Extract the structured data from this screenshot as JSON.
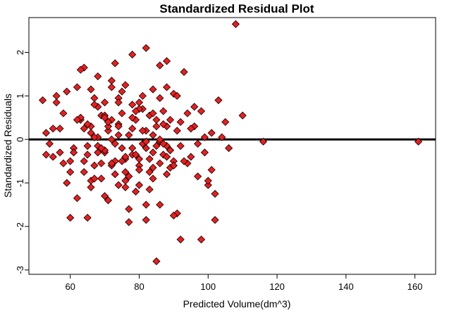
{
  "chart_data": {
    "type": "scatter",
    "title": "Standardized Residual Plot",
    "xlabel": "Predicted Volume(dm^3)",
    "ylabel": "Standardized Residuals",
    "xlim": [
      48,
      166
    ],
    "ylim": [
      -3.1,
      2.8
    ],
    "x_ticks": [
      60,
      80,
      100,
      120,
      140,
      160
    ],
    "y_ticks": [
      -3,
      -2,
      -1,
      0,
      1,
      2
    ],
    "reference_line": 0,
    "grid": false,
    "legend": "none",
    "marker": "diamond",
    "point_color": "#ee1c1c",
    "series": [
      {
        "x": [
          52,
          53,
          54,
          55,
          56,
          57,
          58,
          59,
          60,
          61,
          62,
          63,
          64,
          64,
          65,
          66,
          66,
          67,
          67,
          68,
          68,
          69,
          69,
          70,
          70,
          71,
          71,
          72,
          72,
          73,
          73,
          74,
          74,
          75,
          75,
          76,
          76,
          77,
          77,
          78,
          78,
          79,
          79,
          80,
          80,
          81,
          81,
          82,
          82,
          83,
          83,
          84,
          84,
          85,
          85,
          86,
          86,
          87,
          87,
          88,
          88,
          89,
          89,
          90,
          90,
          91,
          91,
          92,
          93,
          94,
          95,
          96,
          97,
          98,
          99,
          100,
          101,
          102,
          103,
          104,
          105,
          106,
          108,
          110,
          116,
          161,
          53,
          56,
          58,
          60,
          62,
          64,
          66,
          68,
          70,
          72,
          74,
          76,
          78,
          80,
          82,
          84,
          86,
          88,
          90,
          92,
          94,
          96,
          98,
          100,
          102,
          55,
          57,
          59,
          61,
          63,
          65,
          67,
          69,
          71,
          73,
          75,
          77,
          79,
          81,
          83,
          85,
          87,
          89,
          91,
          93,
          95,
          97,
          99,
          101,
          60,
          63,
          65,
          67,
          70,
          72,
          74,
          76,
          78,
          80,
          82,
          84,
          86,
          88,
          90,
          92,
          62,
          64,
          66,
          68,
          70,
          72,
          74,
          76,
          78,
          80,
          82,
          84,
          86,
          88,
          66,
          68,
          70,
          72,
          74,
          76,
          78,
          80,
          82,
          84,
          86,
          88,
          65,
          67,
          69,
          71,
          73,
          75,
          77,
          79,
          81,
          83,
          85,
          87,
          89
        ],
        "y": [
          0.9,
          0.15,
          -0.1,
          0.25,
          1.0,
          -0.3,
          -0.55,
          1.1,
          -0.75,
          -0.2,
          -1.35,
          0.45,
          1.65,
          -0.5,
          -1.8,
          0.3,
          -1.1,
          0.95,
          -0.6,
          1.45,
          0.05,
          0.55,
          -0.9,
          0.85,
          -0.3,
          0.2,
          -1.4,
          1.2,
          0.0,
          1.75,
          -0.5,
          0.35,
          -1.05,
          0.6,
          -0.2,
          1.25,
          -0.75,
          0.1,
          -1.6,
          1.95,
          -0.35,
          0.45,
          -1.2,
          0.85,
          -0.6,
          1.0,
          -0.1,
          2.1,
          -1.85,
          0.55,
          -0.45,
          1.15,
          -0.9,
          0.3,
          -2.8,
          1.7,
          -0.05,
          0.65,
          -0.35,
          1.2,
          -0.8,
          0.45,
          -0.25,
          1.05,
          -0.5,
          0.2,
          -1.7,
          -0.15,
          1.55,
          0.6,
          -0.4,
          0.3,
          -0.1,
          0.65,
          -0.3,
          -1.05,
          0.15,
          -1.25,
          0.9,
          0.05,
          0.4,
          -0.2,
          2.65,
          0.55,
          -0.05,
          -0.05,
          -0.35,
          0.85,
          0.6,
          -0.5,
          1.2,
          0.25,
          -0.95,
          0.75,
          -0.25,
          1.35,
          0.1,
          -0.45,
          0.5,
          -1.05,
          0.2,
          -0.65,
          0.95,
          -0.15,
          -1.75,
          0.4,
          -0.55,
          0.75,
          -2.3,
          -0.95,
          -1.85,
          -0.4,
          0.25,
          -1.0,
          -0.3,
          0.5,
          -0.15,
          0.8,
          -0.55,
          0.3,
          -0.8,
          1.1,
          -1.9,
          -0.35,
          0.7,
          -1.15,
          0.45,
          -0.1,
          -0.65,
          1.0,
          -0.5,
          0.25,
          -0.85,
          0.05,
          -0.7,
          -1.8,
          1.6,
          0.35,
          -0.9,
          -1.3,
          0.45,
          0.95,
          -0.4,
          -0.2,
          0.7,
          -0.05,
          -0.3,
          -1.5,
          1.8,
          -0.6,
          -2.3,
          0.45,
          -0.75,
          1.15,
          -0.15,
          0.55,
          -0.6,
          0.3,
          -1.1,
          0.8,
          -0.45,
          -0.2,
          0.6,
          -0.55,
          0.3,
          0.15,
          -0.3,
          0.5,
          -0.55,
          0.85,
          -0.95,
          0.25,
          -0.7,
          -1.5,
          0.1,
          0.0,
          -0.4,
          -0.35,
          0.05,
          -0.2,
          0.4,
          -0.1,
          -0.5,
          -0.85,
          0.65,
          0.2,
          -0.75,
          -0.15,
          0.35,
          -0.25
        ]
      }
    ]
  }
}
